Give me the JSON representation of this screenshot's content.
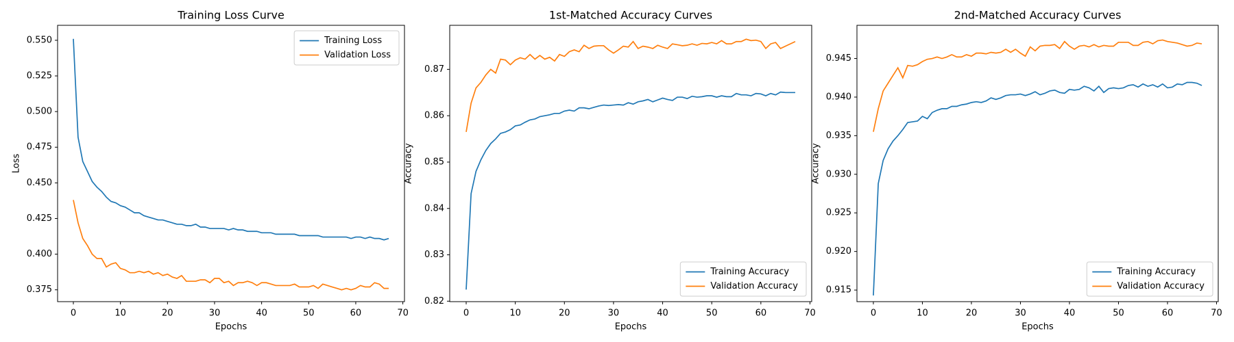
{
  "chart_data": [
    {
      "type": "line",
      "title": "Training Loss Curve",
      "xlabel": "Epochs",
      "ylabel": "Loss",
      "legend": "upper right",
      "x": [
        0,
        1,
        2,
        3,
        4,
        5,
        6,
        7,
        8,
        9,
        10,
        11,
        12,
        13,
        14,
        15,
        16,
        17,
        18,
        19,
        20,
        21,
        22,
        23,
        24,
        25,
        26,
        27,
        28,
        29,
        30,
        31,
        32,
        33,
        34,
        35,
        36,
        37,
        38,
        39,
        40,
        41,
        42,
        43,
        44,
        45,
        46,
        47,
        48,
        49,
        50,
        51,
        52,
        53,
        54,
        55,
        56,
        57,
        58,
        59,
        60,
        61,
        62,
        63,
        64,
        65,
        66,
        67
      ],
      "xlim": [
        -3.35,
        70.35
      ],
      "xticks": [
        0,
        10,
        20,
        30,
        40,
        50,
        60,
        70
      ],
      "ylim": [
        0.3667,
        0.5605
      ],
      "yticks": [
        0.375,
        {
          "value": 0.4,
          "label": "0.400"
        },
        0.425,
        {
          "value": 0.45,
          "label": "0.450"
        },
        0.475,
        {
          "value": 0.5,
          "label": "0.500"
        },
        0.525,
        {
          "value": 0.55,
          "label": "0.550"
        }
      ],
      "series": [
        {
          "name": "Training Loss",
          "color": "#1f77b4",
          "values": [
            0.551,
            0.482,
            0.465,
            0.458,
            0.451,
            0.447,
            0.444,
            0.44,
            0.437,
            0.436,
            0.434,
            0.433,
            0.431,
            0.429,
            0.429,
            0.427,
            0.426,
            0.425,
            0.424,
            0.424,
            0.423,
            0.422,
            0.421,
            0.421,
            0.42,
            0.42,
            0.421,
            0.419,
            0.419,
            0.418,
            0.418,
            0.418,
            0.418,
            0.417,
            0.418,
            0.417,
            0.417,
            0.416,
            0.416,
            0.416,
            0.415,
            0.415,
            0.415,
            0.414,
            0.414,
            0.414,
            0.414,
            0.414,
            0.413,
            0.413,
            0.413,
            0.413,
            0.413,
            0.412,
            0.412,
            0.412,
            0.412,
            0.412,
            0.412,
            0.411,
            0.412,
            0.412,
            0.411,
            0.412,
            0.411,
            0.411,
            0.41,
            0.411
          ]
        },
        {
          "name": "Validation Loss",
          "color": "#ff7f0e",
          "values": [
            0.438,
            0.422,
            0.411,
            0.406,
            0.4,
            0.397,
            0.397,
            0.391,
            0.393,
            0.394,
            0.39,
            0.389,
            0.387,
            0.387,
            0.388,
            0.387,
            0.388,
            0.386,
            0.387,
            0.385,
            0.386,
            0.384,
            0.383,
            0.385,
            0.381,
            0.381,
            0.381,
            0.382,
            0.382,
            0.38,
            0.383,
            0.383,
            0.38,
            0.381,
            0.378,
            0.38,
            0.38,
            0.381,
            0.38,
            0.378,
            0.38,
            0.38,
            0.379,
            0.378,
            0.378,
            0.378,
            0.378,
            0.379,
            0.377,
            0.377,
            0.377,
            0.378,
            0.376,
            0.379,
            0.378,
            0.377,
            0.376,
            0.375,
            0.376,
            0.375,
            0.376,
            0.378,
            0.377,
            0.377,
            0.38,
            0.379,
            0.376,
            0.376
          ]
        }
      ]
    },
    {
      "type": "line",
      "title": "1st-Matched Accuracy Curves",
      "xlabel": "Epochs",
      "ylabel": "Accuracy",
      "legend": "lower right",
      "x": [
        0,
        1,
        2,
        3,
        4,
        5,
        6,
        7,
        8,
        9,
        10,
        11,
        12,
        13,
        14,
        15,
        16,
        17,
        18,
        19,
        20,
        21,
        22,
        23,
        24,
        25,
        26,
        27,
        28,
        29,
        30,
        31,
        32,
        33,
        34,
        35,
        36,
        37,
        38,
        39,
        40,
        41,
        42,
        43,
        44,
        45,
        46,
        47,
        48,
        49,
        50,
        51,
        52,
        53,
        54,
        55,
        56,
        57,
        58,
        59,
        60,
        61,
        62,
        63,
        64,
        65,
        66,
        67
      ],
      "xlim": [
        -3.35,
        70.35
      ],
      "xticks": [
        0,
        10,
        20,
        30,
        40,
        50,
        60,
        70
      ],
      "ylim": [
        0.8199,
        0.8795
      ],
      "yticks": [
        0.82,
        0.83,
        0.84,
        0.85,
        0.86,
        0.87
      ],
      "series": [
        {
          "name": "Training Accuracy",
          "color": "#1f77b4",
          "values": [
            0.8225,
            0.8432,
            0.848,
            0.8505,
            0.8525,
            0.854,
            0.855,
            0.8562,
            0.8565,
            0.857,
            0.8578,
            0.858,
            0.8586,
            0.8591,
            0.8593,
            0.8598,
            0.86,
            0.8602,
            0.8605,
            0.8605,
            0.861,
            0.8612,
            0.861,
            0.8617,
            0.8617,
            0.8615,
            0.8618,
            0.8621,
            0.8623,
            0.8622,
            0.8623,
            0.8624,
            0.8623,
            0.8628,
            0.8625,
            0.863,
            0.8632,
            0.8635,
            0.863,
            0.8634,
            0.8638,
            0.8635,
            0.8633,
            0.864,
            0.864,
            0.8637,
            0.8642,
            0.864,
            0.8641,
            0.8643,
            0.8643,
            0.864,
            0.8643,
            0.8641,
            0.8641,
            0.8648,
            0.8645,
            0.8645,
            0.8643,
            0.8648,
            0.8647,
            0.8643,
            0.8648,
            0.8645,
            0.8651,
            0.865,
            0.865,
            0.865
          ]
        },
        {
          "name": "Validation Accuracy",
          "color": "#ff7f0e",
          "values": [
            0.8565,
            0.8627,
            0.866,
            0.8672,
            0.8688,
            0.87,
            0.8692,
            0.8722,
            0.872,
            0.871,
            0.872,
            0.8725,
            0.8722,
            0.8732,
            0.8722,
            0.873,
            0.8722,
            0.8726,
            0.8718,
            0.8732,
            0.8728,
            0.8738,
            0.8742,
            0.8738,
            0.8752,
            0.8745,
            0.875,
            0.8751,
            0.8751,
            0.8742,
            0.8735,
            0.8742,
            0.875,
            0.8748,
            0.876,
            0.8745,
            0.875,
            0.8748,
            0.8745,
            0.8752,
            0.8748,
            0.8745,
            0.8755,
            0.8753,
            0.8751,
            0.8752,
            0.8755,
            0.8752,
            0.8756,
            0.8755,
            0.8758,
            0.8755,
            0.8762,
            0.8755,
            0.8755,
            0.876,
            0.876,
            0.8765,
            0.8762,
            0.8763,
            0.876,
            0.8745,
            0.8755,
            0.8758,
            0.8745,
            0.875,
            0.8755,
            0.876
          ]
        }
      ]
    },
    {
      "type": "line",
      "title": "2nd-Matched Accuracy Curves",
      "xlabel": "Epochs",
      "ylabel": "Accuracy",
      "legend": "lower right",
      "x": [
        0,
        1,
        2,
        3,
        4,
        5,
        6,
        7,
        8,
        9,
        10,
        11,
        12,
        13,
        14,
        15,
        16,
        17,
        18,
        19,
        20,
        21,
        22,
        23,
        24,
        25,
        26,
        27,
        28,
        29,
        30,
        31,
        32,
        33,
        34,
        35,
        36,
        37,
        38,
        39,
        40,
        41,
        42,
        43,
        44,
        45,
        46,
        47,
        48,
        49,
        50,
        51,
        52,
        53,
        54,
        55,
        56,
        57,
        58,
        59,
        60,
        61,
        62,
        63,
        64,
        65,
        66,
        67
      ],
      "xlim": [
        -3.35,
        70.35
      ],
      "xticks": [
        0,
        10,
        20,
        30,
        40,
        50,
        60,
        70
      ],
      "ylim": [
        0.9135,
        0.9493
      ],
      "yticks": [
        0.915,
        {
          "value": 0.92,
          "label": "0.920"
        },
        0.925,
        {
          "value": 0.93,
          "label": "0.930"
        },
        0.935,
        {
          "value": 0.94,
          "label": "0.940"
        },
        0.945
      ],
      "series": [
        {
          "name": "Training Accuracy",
          "color": "#1f77b4",
          "values": [
            0.9143,
            0.9288,
            0.9318,
            0.9333,
            0.9343,
            0.935,
            0.9358,
            0.9367,
            0.9368,
            0.9369,
            0.9375,
            0.9372,
            0.938,
            0.9383,
            0.9385,
            0.9385,
            0.9388,
            0.9388,
            0.939,
            0.9391,
            0.9393,
            0.9394,
            0.9393,
            0.9395,
            0.9399,
            0.9397,
            0.9399,
            0.9402,
            0.9403,
            0.9403,
            0.9404,
            0.9402,
            0.9404,
            0.9407,
            0.9403,
            0.9405,
            0.9408,
            0.9409,
            0.9406,
            0.9405,
            0.941,
            0.9409,
            0.941,
            0.9414,
            0.9412,
            0.9408,
            0.9414,
            0.9406,
            0.9411,
            0.9412,
            0.9411,
            0.9412,
            0.9415,
            0.9416,
            0.9413,
            0.9417,
            0.9414,
            0.9416,
            0.9413,
            0.9417,
            0.9412,
            0.9413,
            0.9417,
            0.9416,
            0.9419,
            0.9419,
            0.9418,
            0.9415
          ]
        },
        {
          "name": "Validation Accuracy",
          "color": "#ff7f0e",
          "values": [
            0.9355,
            0.9385,
            0.9408,
            0.9418,
            0.9428,
            0.9438,
            0.9425,
            0.9441,
            0.944,
            0.9442,
            0.9446,
            0.9449,
            0.945,
            0.9452,
            0.945,
            0.9452,
            0.9455,
            0.9452,
            0.9452,
            0.9455,
            0.9453,
            0.9457,
            0.9457,
            0.9456,
            0.9458,
            0.9457,
            0.9458,
            0.9462,
            0.9458,
            0.9462,
            0.9457,
            0.9453,
            0.9465,
            0.946,
            0.9466,
            0.9467,
            0.9467,
            0.9468,
            0.9463,
            0.9472,
            0.9466,
            0.9462,
            0.9466,
            0.9467,
            0.9465,
            0.9468,
            0.9465,
            0.9467,
            0.9466,
            0.9466,
            0.9471,
            0.9471,
            0.9471,
            0.9467,
            0.9467,
            0.9471,
            0.9472,
            0.9469,
            0.9473,
            0.9474,
            0.9472,
            0.9471,
            0.947,
            0.9468,
            0.9466,
            0.9467,
            0.947,
            0.9469
          ]
        }
      ]
    }
  ]
}
